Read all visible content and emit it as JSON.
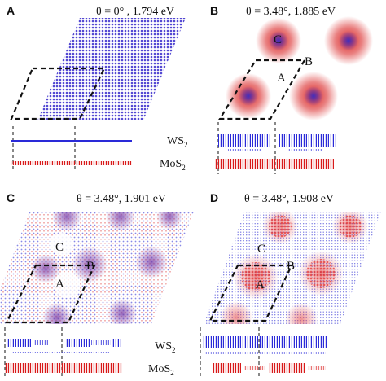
{
  "colors": {
    "w": "#2a2ad8",
    "mo": "#d81a1a",
    "outline": "#111111"
  },
  "panels": [
    {
      "id": "a",
      "label": "A",
      "title": "θ = 0° , 1.794 eV",
      "regions": [],
      "legend": [
        "WS",
        "MoS"
      ],
      "legend_sub": "2"
    },
    {
      "id": "b",
      "label": "B",
      "title": "θ = 3.48°, 1.885 eV",
      "regions": [
        "A",
        "B",
        "C"
      ]
    },
    {
      "id": "c",
      "label": "C",
      "title": "θ = 3.48°, 1.901 eV",
      "regions": [
        "A",
        "B",
        "C"
      ],
      "legend": [
        "WS",
        "MoS"
      ],
      "legend_sub": "2"
    },
    {
      "id": "d",
      "label": "D",
      "title": "θ = 3.48°, 1.908 eV",
      "regions": [
        "A",
        "B",
        "C"
      ]
    }
  ]
}
